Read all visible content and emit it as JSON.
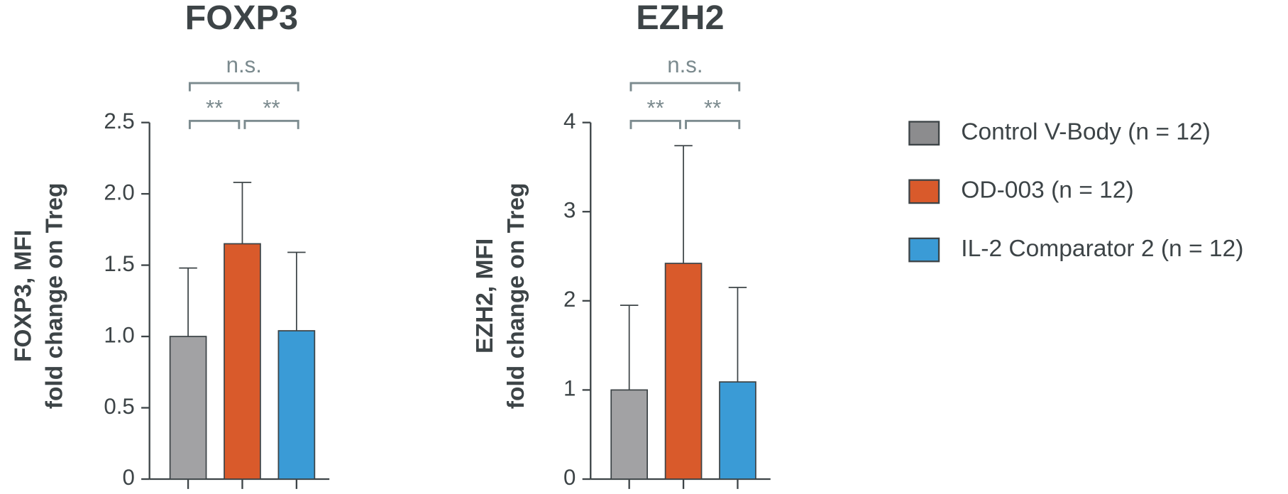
{
  "chart_data": [
    {
      "type": "bar",
      "title": "FOXP3",
      "ylabel": [
        "FOXP3, MFI",
        "fold change on Treg"
      ],
      "categories": [
        null,
        null,
        null
      ],
      "values": [
        1.0,
        1.65,
        1.04
      ],
      "errors": [
        0.48,
        0.43,
        0.55
      ],
      "colors": [
        "#a2a2a4",
        "#d95a2b",
        "#3a9bd6"
      ],
      "ylim": [
        0,
        2.5
      ],
      "yticks": [
        0,
        0.5,
        {
          "value": 1,
          "label": "1.0"
        },
        1.5,
        {
          "value": 2,
          "label": "2.0"
        },
        2.5
      ],
      "annotations": [
        "**",
        "**",
        "n.s."
      ]
    },
    {
      "type": "bar",
      "title": "EZH2",
      "ylabel": [
        "EZH2, MFI",
        "fold change on Treg"
      ],
      "categories": [
        null,
        null,
        null
      ],
      "values": [
        1.0,
        2.42,
        1.09
      ],
      "errors": [
        0.95,
        1.32,
        1.06
      ],
      "colors": [
        "#a2a2a4",
        "#d95a2b",
        "#3a9bd6"
      ],
      "ylim": [
        0,
        4
      ],
      "yticks": [
        0,
        1,
        2,
        3,
        4
      ],
      "annotations": [
        "**",
        "**",
        "n.s."
      ]
    }
  ],
  "legend": [
    {
      "name": "Control V-Body (n = 12)",
      "color": "#8c8c8e"
    },
    {
      "name": "OD-003 (n = 12)",
      "color": "#d95a2b"
    },
    {
      "name": "IL-2 Comparator 2 (n = 12)",
      "color": "#3a9bd6"
    }
  ]
}
